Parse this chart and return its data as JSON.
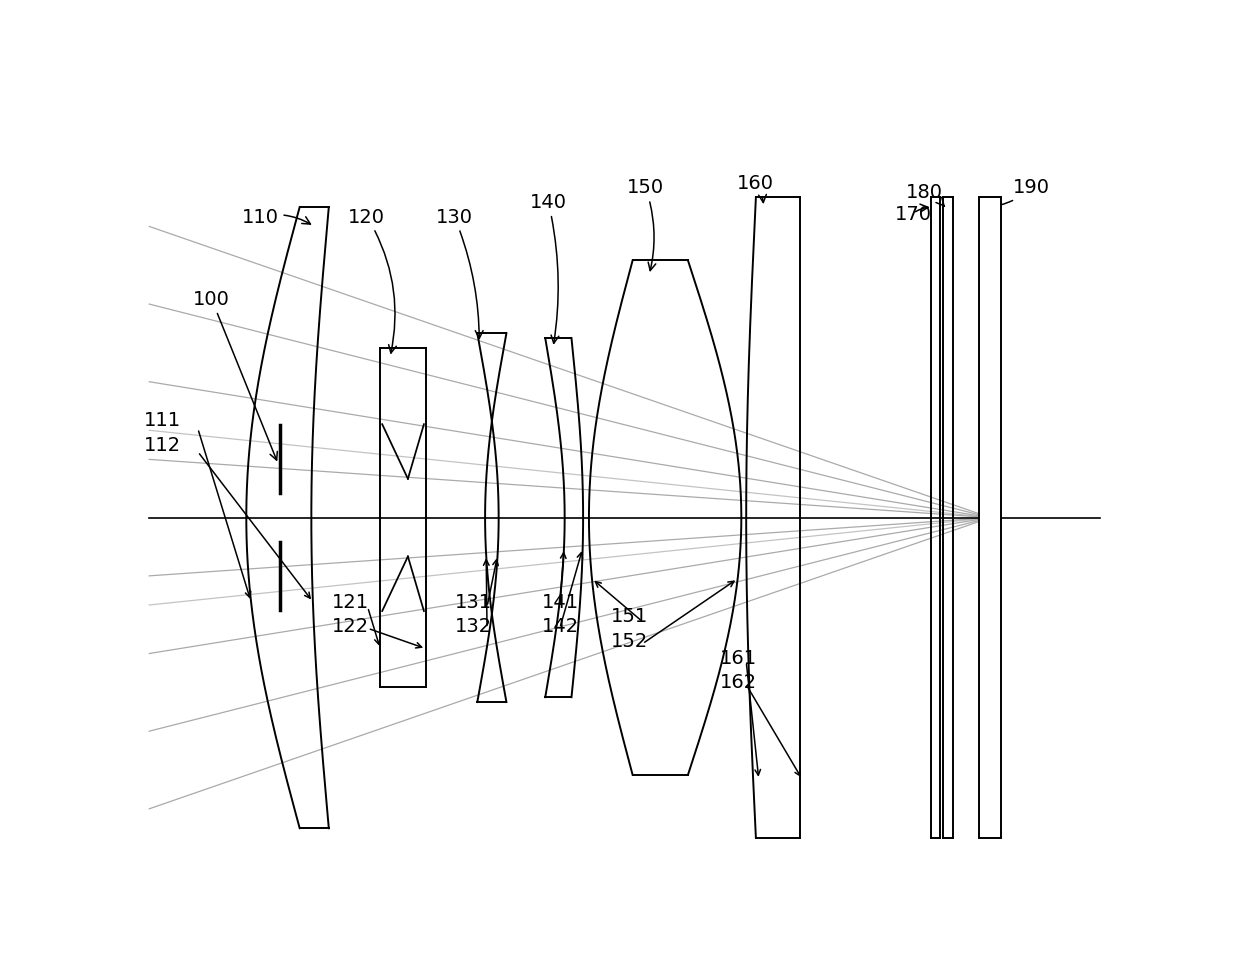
{
  "background": "#ffffff",
  "lc": "#000000",
  "rc": "#aaaaaa",
  "figsize": [
    12.4,
    9.79
  ],
  "dpi": 100,
  "oy": 0.47,
  "xlim": [
    0.0,
    1.05
  ],
  "ylim": [
    0.0,
    1.0
  ]
}
